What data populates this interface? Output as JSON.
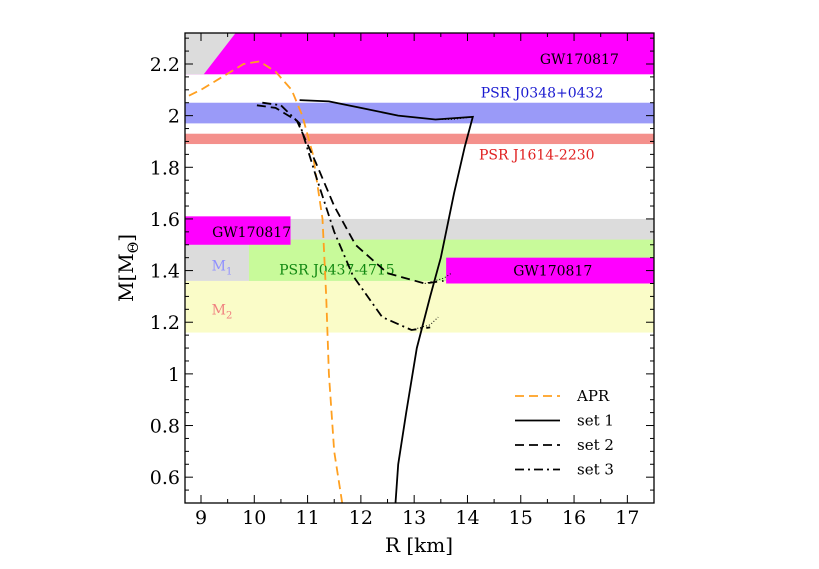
{
  "chart_data": {
    "type": "line",
    "xlabel": "R [km]",
    "ylabel": "M[M",
    "ylabel_sub": "Θ",
    "ylabel_close": "]",
    "xlim": [
      8.7,
      17.5
    ],
    "ylim": [
      0.5,
      2.32
    ],
    "x_ticks": [
      "9",
      "10",
      "11",
      "12",
      "13",
      "14",
      "15",
      "16",
      "17"
    ],
    "y_ticks": [
      "0.6",
      "0.8",
      "1",
      "1.2",
      "1.4",
      "1.6",
      "1.8",
      "2",
      "2.2"
    ],
    "bands": [
      {
        "name": "m2-band",
        "x0": 8.7,
        "x1": 17.5,
        "y0": 1.16,
        "y1": 1.36,
        "color": "#fafcc8"
      },
      {
        "name": "m1-band",
        "x0": 8.7,
        "x1": 17.5,
        "y0": 1.36,
        "y1": 1.6,
        "color": "#dcdcdc"
      },
      {
        "name": "psr-j0437-band",
        "x0": 9.9,
        "x1": 17.5,
        "y0": 1.36,
        "y1": 1.52,
        "color": "#c8fa9a"
      },
      {
        "name": "gw-low-band",
        "x0": 8.7,
        "x1": 10.68,
        "y0": 1.5,
        "y1": 1.61,
        "color": "#ff00ff"
      },
      {
        "name": "gw-mid-band",
        "x0": 13.6,
        "x1": 17.5,
        "y0": 1.35,
        "y1": 1.45,
        "color": "#ff00ff"
      },
      {
        "name": "psr-j1614-band",
        "x0": 8.7,
        "x1": 17.5,
        "y0": 1.89,
        "y1": 1.93,
        "color": "#f4908c"
      },
      {
        "name": "psr-j0348-band",
        "x0": 8.7,
        "x1": 17.5,
        "y0": 1.97,
        "y1": 2.05,
        "color": "#9a9af8"
      },
      {
        "name": "gw-top-band",
        "x0": 8.7,
        "x1": 17.5,
        "y0": 2.16,
        "y1": 2.32,
        "color": "#ff00ff"
      }
    ],
    "labels": [
      {
        "text": "GW170817",
        "x": 16.1,
        "y": 2.22,
        "color": "#000000"
      },
      {
        "text": "PSR J0348+0432",
        "x": 15.4,
        "y": 2.09,
        "color": "#1a1ad0"
      },
      {
        "text": "PSR J1614-2230",
        "x": 15.3,
        "y": 1.85,
        "color": "#e02020"
      },
      {
        "text": "GW170817",
        "x": 9.95,
        "y": 1.55,
        "color": "#000000"
      },
      {
        "text": "M",
        "sub": "1",
        "x": 9.2,
        "y": 1.42,
        "color": "#8f90ff"
      },
      {
        "text": "PSR J0437-4715",
        "x": 11.55,
        "y": 1.405,
        "color": "#118811"
      },
      {
        "text": "GW170817",
        "x": 15.6,
        "y": 1.4,
        "color": "#000000"
      },
      {
        "text": "M",
        "sub": "2",
        "x": 9.2,
        "y": 1.25,
        "color": "#f08080"
      }
    ],
    "series": [
      {
        "name": "APR",
        "style": "dashed",
        "color": "#ffa020",
        "points": [
          [
            11.65,
            0.5
          ],
          [
            11.5,
            0.7
          ],
          [
            11.4,
            1.0
          ],
          [
            11.35,
            1.3
          ],
          [
            11.28,
            1.6
          ],
          [
            11.1,
            1.85
          ],
          [
            10.9,
            2.0
          ],
          [
            10.7,
            2.1
          ],
          [
            10.4,
            2.17
          ],
          [
            10.1,
            2.21
          ],
          [
            9.8,
            2.2
          ],
          [
            9.4,
            2.15
          ],
          [
            9.0,
            2.1
          ],
          [
            8.7,
            2.07
          ]
        ]
      },
      {
        "name": "set 1",
        "style": "solid",
        "color": "#000000",
        "points": [
          [
            12.65,
            0.5
          ],
          [
            12.7,
            0.65
          ],
          [
            12.85,
            0.85
          ],
          [
            13.05,
            1.1
          ],
          [
            13.3,
            1.3
          ],
          [
            13.5,
            1.45
          ],
          [
            13.75,
            1.7
          ],
          [
            13.95,
            1.88
          ],
          [
            14.1,
            1.995
          ],
          [
            13.4,
            1.985
          ],
          [
            12.7,
            2.0
          ],
          [
            12.0,
            2.03
          ],
          [
            11.4,
            2.055
          ],
          [
            10.85,
            2.06
          ]
        ],
        "tail": [
          [
            14.1,
            1.995
          ],
          [
            13.75,
            1.986
          ],
          [
            13.4,
            1.985
          ]
        ]
      },
      {
        "name": "set 2",
        "style": "dashed",
        "color": "#000000",
        "points": [
          [
            10.05,
            2.04
          ],
          [
            10.4,
            2.03
          ],
          [
            10.8,
            1.98
          ],
          [
            11.15,
            1.82
          ],
          [
            11.5,
            1.65
          ],
          [
            11.9,
            1.5
          ],
          [
            12.5,
            1.39
          ],
          [
            13.2,
            1.35
          ],
          [
            13.55,
            1.36
          ]
        ],
        "tail": [
          [
            13.2,
            1.35
          ],
          [
            13.55,
            1.37
          ],
          [
            13.7,
            1.39
          ]
        ]
      },
      {
        "name": "set 3",
        "style": "dashdot",
        "color": "#000000",
        "points": [
          [
            10.15,
            2.05
          ],
          [
            10.5,
            2.04
          ],
          [
            10.85,
            1.97
          ],
          [
            11.15,
            1.77
          ],
          [
            11.5,
            1.55
          ],
          [
            11.85,
            1.38
          ],
          [
            12.4,
            1.22
          ],
          [
            12.95,
            1.17
          ],
          [
            13.3,
            1.18
          ]
        ],
        "tail": [
          [
            12.95,
            1.17
          ],
          [
            13.3,
            1.19
          ],
          [
            13.45,
            1.22
          ]
        ]
      }
    ],
    "legend": {
      "placement": "bottom-right",
      "entries": [
        {
          "label": "APR",
          "style": "dashed",
          "color": "#ffa020"
        },
        {
          "label": "set 1",
          "style": "solid",
          "color": "#000000"
        },
        {
          "label": "set 2",
          "style": "dashed",
          "color": "#000000"
        },
        {
          "label": "set 3",
          "style": "dashdot",
          "color": "#000000"
        }
      ]
    }
  }
}
